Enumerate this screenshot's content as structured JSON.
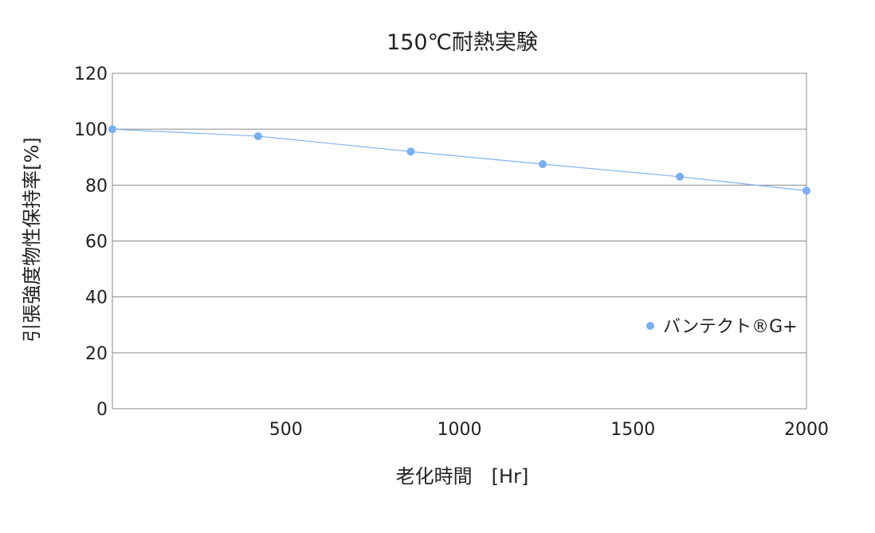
{
  "chart_data": {
    "type": "line",
    "title": "150℃耐熱実験",
    "xlabel": "老化時間　[Hr]",
    "ylabel": "引張強度物性保持率[%]",
    "xlim": [
      0,
      2000
    ],
    "ylim": [
      0,
      120
    ],
    "x_ticks": [
      "500",
      "1000",
      "1500",
      "2000"
    ],
    "y_ticks": [
      "0",
      "20",
      "40",
      "60",
      "80",
      "100",
      "120"
    ],
    "grid": true,
    "legend_position": "right",
    "series": [
      {
        "name": "バンテクト®G+",
        "color": "#7aaef0",
        "x": [
          0,
          420,
          860,
          1240,
          1635,
          2000
        ],
        "y": [
          100,
          97.5,
          92,
          87.5,
          83,
          78
        ]
      }
    ]
  }
}
